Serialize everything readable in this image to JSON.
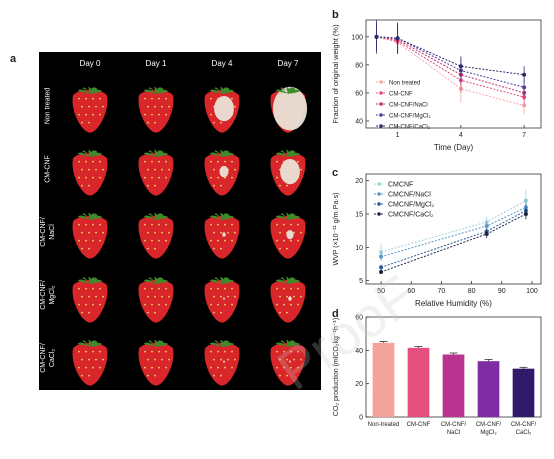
{
  "panel_a": {
    "letter": "a",
    "days": [
      "Day 0",
      "Day 1",
      "Day 4",
      "Day 7"
    ],
    "rows": [
      "Non treated",
      "CM-CNF",
      "CM-CNF/\nNaCl",
      "CM-CNF/\nMgCl₂",
      "CM-CNF/\nCaCl₂"
    ],
    "decay": [
      [
        0.0,
        0.0,
        0.55,
        0.95
      ],
      [
        0.0,
        0.0,
        0.25,
        0.55
      ],
      [
        0.0,
        0.0,
        0.1,
        0.2
      ],
      [
        0.0,
        0.0,
        0.05,
        0.1
      ],
      [
        0.0,
        0.0,
        0.05,
        0.05
      ]
    ],
    "colors": {
      "berry": "#d8262b",
      "berry_dark": "#9c1418",
      "mold": "#e9e2d6",
      "leaf": "#3f8a2a"
    }
  },
  "chart_data": [
    {
      "letter": "b",
      "type": "line",
      "xlabel": "Time (Day)",
      "ylabel": "Fraction of original weight (%)",
      "x_ticks": [
        1,
        4,
        7
      ],
      "y_ticks": [
        40,
        60,
        80,
        100
      ],
      "xlim": [
        -0.5,
        7.8
      ],
      "ylim": [
        35,
        112
      ],
      "x": [
        0,
        1,
        4,
        7
      ],
      "series": [
        {
          "name": "Non treated",
          "color": "#f5a7a5",
          "values": [
            100,
            96,
            63,
            51
          ],
          "err": [
            6,
            8,
            10,
            6
          ]
        },
        {
          "name": "CM-CNF",
          "color": "#e84a7a",
          "values": [
            100,
            97,
            69,
            57
          ],
          "err": [
            7,
            9,
            9,
            6
          ]
        },
        {
          "name": "CM-CNF/NaCl",
          "color": "#c0306e",
          "values": [
            100,
            98,
            73,
            60
          ],
          "err": [
            8,
            10,
            8,
            5
          ]
        },
        {
          "name": "CM-CNF/MgCl₂",
          "color": "#5a3aa0",
          "values": [
            100,
            99,
            76,
            64
          ],
          "err": [
            10,
            11,
            8,
            6
          ]
        },
        {
          "name": "CM-CNF/CaCl₂",
          "color": "#2b2a6a",
          "values": [
            100,
            99,
            79,
            73
          ],
          "err": [
            12,
            11,
            7,
            6
          ]
        }
      ]
    },
    {
      "letter": "c",
      "type": "line",
      "xlabel": "Relative Humidity (%)",
      "ylabel": "WVP (×10⁻¹¹ g/m·Pa·s)",
      "x_ticks": [
        50,
        60,
        70,
        80,
        90,
        100
      ],
      "y_ticks": [
        5,
        10,
        15,
        20
      ],
      "xlim": [
        45,
        103
      ],
      "ylim": [
        4.5,
        21
      ],
      "x": [
        50,
        85,
        98
      ],
      "series": [
        {
          "name": "CMCNF",
          "color": "#9fd3da",
          "values": [
            9.3,
            13.8,
            17.0
          ],
          "err": [
            1.1,
            0.8,
            1.6
          ]
        },
        {
          "name": "CMCNF/NaCl",
          "color": "#5a98c8",
          "values": [
            8.6,
            13.2,
            16.0
          ],
          "err": [
            0.6,
            0.6,
            1.3
          ]
        },
        {
          "name": "CMCNF/MgCl₂",
          "color": "#2a5c96",
          "values": [
            7.0,
            12.4,
            15.5
          ],
          "err": [
            0.4,
            0.5,
            1.0
          ]
        },
        {
          "name": "CMCNF/CaCl₂",
          "color": "#1c2440",
          "values": [
            6.3,
            12.0,
            15.0
          ],
          "err": [
            0.3,
            0.6,
            0.8
          ]
        }
      ]
    },
    {
      "letter": "d",
      "type": "bar",
      "ylabel": "CO₂ production (mlCO₂kg⁻¹h⁻¹)",
      "y_ticks": [
        0,
        20,
        40,
        60
      ],
      "ylim": [
        0,
        60
      ],
      "categories": [
        "Non-treated",
        "CM-CNF",
        "CM-CNF/\nNaCl",
        "CM-CNF/\nMgCl₂",
        "CM-CNF/\nCaCl₂"
      ],
      "values": [
        44.5,
        41.5,
        37.5,
        33.5,
        29.0
      ],
      "err": [
        0.8,
        0.8,
        0.9,
        1.0,
        0.8
      ],
      "colors": [
        "#f3a39c",
        "#e4507e",
        "#b8348e",
        "#7e2da2",
        "#2f1a6a"
      ]
    }
  ]
}
